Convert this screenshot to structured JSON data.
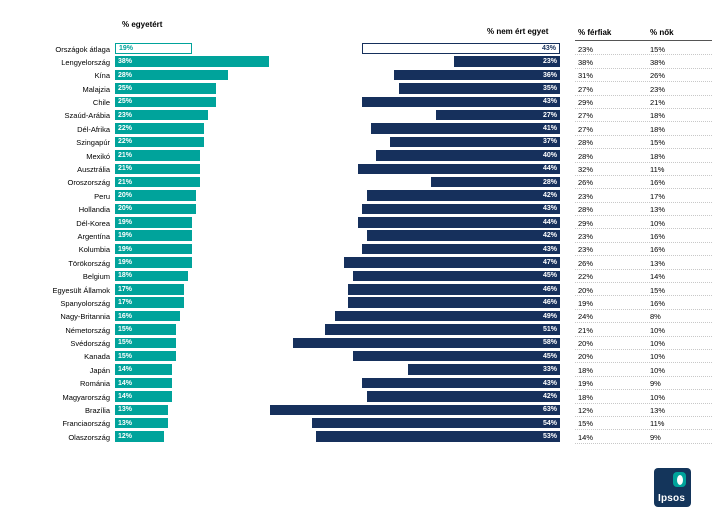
{
  "colors": {
    "teal": "#00a39b",
    "navy": "#16305c"
  },
  "logo": {
    "text": "Ipsos"
  },
  "chart_data": {
    "type": "bar",
    "title": "",
    "legend_position": "none",
    "headers": {
      "agree": "% egyetért",
      "disagree": "% nem ért egyet",
      "men": "% férfiak",
      "women": "% nők"
    },
    "axis": {
      "agree_max": 38,
      "disagree_max": 63,
      "unit": "%"
    },
    "rows": [
      {
        "country": "Országok átlaga",
        "agree": 19,
        "disagree": 43,
        "men": 23,
        "women": 15,
        "outlined": true
      },
      {
        "country": "Lengyelország",
        "agree": 38,
        "disagree": 23,
        "men": 38,
        "women": 38,
        "outlined": false
      },
      {
        "country": "Kína",
        "agree": 28,
        "disagree": 36,
        "men": 31,
        "women": 26,
        "outlined": false
      },
      {
        "country": "Malajzia",
        "agree": 25,
        "disagree": 35,
        "men": 27,
        "women": 23,
        "outlined": false
      },
      {
        "country": "Chile",
        "agree": 25,
        "disagree": 43,
        "men": 29,
        "women": 21,
        "outlined": false
      },
      {
        "country": "Szaúd-Arábia",
        "agree": 23,
        "disagree": 27,
        "men": 27,
        "women": 18,
        "outlined": false
      },
      {
        "country": "Dél-Afrika",
        "agree": 22,
        "disagree": 41,
        "men": 27,
        "women": 18,
        "outlined": false
      },
      {
        "country": "Szingapúr",
        "agree": 22,
        "disagree": 37,
        "men": 28,
        "women": 15,
        "outlined": false
      },
      {
        "country": "Mexikó",
        "agree": 21,
        "disagree": 40,
        "men": 28,
        "women": 18,
        "outlined": false
      },
      {
        "country": "Ausztrália",
        "agree": 21,
        "disagree": 44,
        "men": 32,
        "women": 11,
        "outlined": false
      },
      {
        "country": "Oroszország",
        "agree": 21,
        "disagree": 28,
        "men": 26,
        "women": 16,
        "outlined": false
      },
      {
        "country": "Peru",
        "agree": 20,
        "disagree": 42,
        "men": 23,
        "women": 17,
        "outlined": false
      },
      {
        "country": "Hollandia",
        "agree": 20,
        "disagree": 43,
        "men": 28,
        "women": 13,
        "outlined": false
      },
      {
        "country": "Dél-Korea",
        "agree": 19,
        "disagree": 44,
        "men": 29,
        "women": 10,
        "outlined": false
      },
      {
        "country": "Argentína",
        "agree": 19,
        "disagree": 42,
        "men": 23,
        "women": 16,
        "outlined": false
      },
      {
        "country": "Kolumbia",
        "agree": 19,
        "disagree": 43,
        "men": 23,
        "women": 16,
        "outlined": false
      },
      {
        "country": "Törökország",
        "agree": 19,
        "disagree": 47,
        "men": 26,
        "women": 13,
        "outlined": false
      },
      {
        "country": "Belgium",
        "agree": 18,
        "disagree": 45,
        "men": 22,
        "women": 14,
        "outlined": false
      },
      {
        "country": "Egyesült Államok",
        "agree": 17,
        "disagree": 46,
        "men": 20,
        "women": 15,
        "outlined": false
      },
      {
        "country": "Spanyolország",
        "agree": 17,
        "disagree": 46,
        "men": 19,
        "women": 16,
        "outlined": false
      },
      {
        "country": "Nagy-Britannia",
        "agree": 16,
        "disagree": 49,
        "men": 24,
        "women": 8,
        "outlined": false
      },
      {
        "country": "Németország",
        "agree": 15,
        "disagree": 51,
        "men": 21,
        "women": 10,
        "outlined": false
      },
      {
        "country": "Svédország",
        "agree": 15,
        "disagree": 58,
        "men": 20,
        "women": 10,
        "outlined": false
      },
      {
        "country": "Kanada",
        "agree": 15,
        "disagree": 45,
        "men": 20,
        "women": 10,
        "outlined": false
      },
      {
        "country": "Japán",
        "agree": 14,
        "disagree": 33,
        "men": 18,
        "women": 10,
        "outlined": false
      },
      {
        "country": "Románia",
        "agree": 14,
        "disagree": 43,
        "men": 19,
        "women": 9,
        "outlined": false
      },
      {
        "country": "Magyarország",
        "agree": 14,
        "disagree": 42,
        "men": 18,
        "women": 10,
        "outlined": false
      },
      {
        "country": "Brazília",
        "agree": 13,
        "disagree": 63,
        "men": 12,
        "women": 13,
        "outlined": false
      },
      {
        "country": "Franciaország",
        "agree": 13,
        "disagree": 54,
        "men": 15,
        "women": 11,
        "outlined": false
      },
      {
        "country": "Olaszország",
        "agree": 12,
        "disagree": 53,
        "men": 14,
        "women": 9,
        "outlined": false
      }
    ]
  }
}
